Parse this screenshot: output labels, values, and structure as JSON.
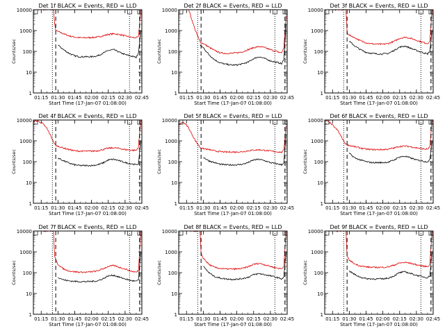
{
  "colors": {
    "events": "#000000",
    "lld": "#dd0000",
    "axis": "#000000",
    "background": "#ffffff"
  },
  "shared": {
    "xlabel": "Start Time (17-Jan-07 01:08:00)",
    "ylabel": "Counts/sec",
    "y_scale": "log",
    "ylim": [
      1,
      10000
    ],
    "y_ticks": [
      1,
      10,
      100,
      1000,
      10000
    ],
    "x_range": [
      "01:08",
      "02:45"
    ],
    "x_ticks": [
      "01:15",
      "01:30",
      "01:45",
      "02:00",
      "02:15",
      "02:30",
      "02:45"
    ],
    "markers": {
      "dotted": [
        "01:25",
        "02:34"
      ],
      "dashed": [
        "01:28",
        "02:43"
      ]
    }
  },
  "chart_data": [
    {
      "type": "line",
      "title": "Det 1f BLACK = Events, RED = LLD",
      "x": [
        "01:17",
        "01:20",
        "01:23",
        "01:26",
        "01:27",
        "01:28",
        "01:30",
        "01:35",
        "01:40",
        "01:45",
        "01:50",
        "01:55",
        "02:00",
        "02:05",
        "02:10",
        "02:15",
        "02:20",
        "02:25",
        "02:30",
        "02:35",
        "02:38",
        "02:40",
        "02:42",
        "02:44"
      ],
      "series": [
        {
          "name": "Events",
          "values": [
            null,
            null,
            null,
            null,
            null,
            null,
            200,
            120,
            80,
            60,
            55,
            55,
            55,
            60,
            80,
            110,
            120,
            90,
            70,
            60,
            55,
            50,
            90,
            1000
          ]
        },
        {
          "name": "LLD",
          "values": [
            10000,
            10000,
            10000,
            10000,
            2000,
            1000,
            900,
            700,
            550,
            480,
            450,
            450,
            460,
            480,
            550,
            650,
            700,
            650,
            550,
            480,
            450,
            450,
            500,
            10000
          ]
        }
      ]
    },
    {
      "type": "line",
      "title": "Det 2f BLACK = Events, RED = LLD",
      "x": [
        "01:17",
        "01:20",
        "01:23",
        "01:26",
        "01:27",
        "01:28",
        "01:30",
        "01:35",
        "01:40",
        "01:45",
        "01:50",
        "01:55",
        "02:00",
        "02:05",
        "02:10",
        "02:15",
        "02:20",
        "02:25",
        "02:30",
        "02:35",
        "02:38",
        "02:40",
        "02:42",
        "02:44"
      ],
      "series": [
        {
          "name": "Events",
          "values": [
            null,
            null,
            null,
            null,
            200,
            180,
            150,
            70,
            40,
            28,
            24,
            22,
            22,
            25,
            30,
            45,
            55,
            45,
            35,
            30,
            28,
            25,
            40,
            2000
          ]
        },
        {
          "name": "LLD",
          "values": [
            10000,
            3000,
            1000,
            400,
            300,
            260,
            240,
            160,
            110,
            85,
            80,
            80,
            85,
            95,
            120,
            150,
            170,
            150,
            120,
            100,
            90,
            85,
            150,
            5000
          ]
        }
      ]
    },
    {
      "type": "line",
      "title": "Det 3f BLACK = Events, RED = LLD",
      "x": [
        "01:17",
        "01:20",
        "01:23",
        "01:26",
        "01:27",
        "01:28",
        "01:30",
        "01:35",
        "01:40",
        "01:45",
        "01:50",
        "01:55",
        "02:00",
        "02:05",
        "02:10",
        "02:15",
        "02:20",
        "02:25",
        "02:30",
        "02:35",
        "02:38",
        "02:40",
        "02:42",
        "02:44"
      ],
      "series": [
        {
          "name": "Events",
          "values": [
            null,
            null,
            null,
            null,
            null,
            null,
            300,
            180,
            120,
            90,
            80,
            75,
            75,
            80,
            110,
            160,
            180,
            140,
            110,
            90,
            80,
            75,
            100,
            1000
          ]
        },
        {
          "name": "LLD",
          "values": [
            10000,
            10000,
            10000,
            10000,
            10000,
            800,
            600,
            450,
            320,
            260,
            230,
            220,
            220,
            240,
            300,
            420,
            480,
            420,
            340,
            280,
            250,
            240,
            300,
            10000
          ]
        }
      ]
    },
    {
      "type": "line",
      "title": "Det 4f BLACK = Events, RED = LLD",
      "x": [
        "01:08",
        "01:12",
        "01:16",
        "01:20",
        "01:23",
        "01:26",
        "01:27",
        "01:28",
        "01:30",
        "01:35",
        "01:40",
        "01:45",
        "01:50",
        "01:55",
        "02:00",
        "02:05",
        "02:10",
        "02:15",
        "02:20",
        "02:25",
        "02:30",
        "02:35",
        "02:38",
        "02:40",
        "02:42",
        "02:44"
      ],
      "series": [
        {
          "name": "Events",
          "values": [
            null,
            null,
            null,
            null,
            null,
            null,
            null,
            null,
            150,
            110,
            85,
            70,
            65,
            65,
            65,
            70,
            85,
            120,
            130,
            110,
            90,
            80,
            75,
            70,
            80,
            1000
          ]
        },
        {
          "name": "LLD",
          "values": [
            9000,
            9000,
            7000,
            4000,
            2000,
            900,
            700,
            600,
            550,
            450,
            380,
            330,
            320,
            320,
            320,
            330,
            380,
            440,
            460,
            430,
            380,
            360,
            350,
            350,
            500,
            10000
          ]
        }
      ]
    },
    {
      "type": "line",
      "title": "Det 5f BLACK = Events, RED = LLD",
      "x": [
        "01:08",
        "01:12",
        "01:16",
        "01:20",
        "01:23",
        "01:26",
        "01:27",
        "01:28",
        "01:30",
        "01:35",
        "01:40",
        "01:45",
        "01:50",
        "01:55",
        "02:00",
        "02:05",
        "02:10",
        "02:15",
        "02:20",
        "02:25",
        "02:30",
        "02:35",
        "02:38",
        "02:40",
        "02:42",
        "02:44"
      ],
      "series": [
        {
          "name": "Events",
          "values": [
            null,
            null,
            null,
            null,
            null,
            null,
            null,
            null,
            160,
            110,
            90,
            75,
            70,
            70,
            70,
            75,
            90,
            120,
            130,
            110,
            90,
            80,
            75,
            70,
            90,
            2000
          ]
        },
        {
          "name": "LLD",
          "values": [
            6000,
            8000,
            5000,
            2000,
            1000,
            600,
            500,
            450,
            420,
            380,
            330,
            300,
            290,
            290,
            290,
            300,
            330,
            360,
            370,
            350,
            320,
            300,
            290,
            280,
            350,
            5000
          ]
        }
      ]
    },
    {
      "type": "line",
      "title": "Det 6f BLACK = Events, RED = LLD",
      "x": [
        "01:08",
        "01:12",
        "01:16",
        "01:20",
        "01:23",
        "01:26",
        "01:27",
        "01:28",
        "01:30",
        "01:35",
        "01:40",
        "01:45",
        "01:50",
        "01:55",
        "02:00",
        "02:05",
        "02:10",
        "02:15",
        "02:20",
        "02:25",
        "02:30",
        "02:35",
        "02:38",
        "02:40",
        "02:42",
        "02:44"
      ],
      "series": [
        {
          "name": "Events",
          "values": [
            null,
            null,
            null,
            null,
            null,
            null,
            null,
            null,
            250,
            150,
            120,
            100,
            90,
            90,
            90,
            95,
            120,
            170,
            180,
            150,
            120,
            110,
            100,
            100,
            120,
            1000
          ]
        },
        {
          "name": "LLD",
          "values": [
            10000,
            8000,
            5000,
            3000,
            1500,
            800,
            700,
            650,
            600,
            520,
            450,
            400,
            380,
            380,
            380,
            400,
            450,
            540,
            560,
            520,
            460,
            420,
            400,
            400,
            500,
            10000
          ]
        }
      ]
    },
    {
      "type": "line",
      "title": "Det 7f BLACK = Events, RED = LLD",
      "x": [
        "01:17",
        "01:20",
        "01:23",
        "01:26",
        "01:27",
        "01:28",
        "01:30",
        "01:35",
        "01:40",
        "01:45",
        "01:50",
        "01:55",
        "02:00",
        "02:05",
        "02:10",
        "02:15",
        "02:20",
        "02:25",
        "02:30",
        "02:35",
        "02:38",
        "02:40",
        "02:42",
        "02:44"
      ],
      "series": [
        {
          "name": "Events",
          "values": [
            null,
            null,
            null,
            null,
            null,
            null,
            60,
            45,
            40,
            38,
            37,
            37,
            38,
            40,
            50,
            70,
            75,
            60,
            50,
            42,
            40,
            38,
            45,
            1000
          ]
        },
        {
          "name": "LLD",
          "values": [
            10000,
            10000,
            10000,
            10000,
            600,
            400,
            250,
            150,
            120,
            110,
            105,
            105,
            110,
            120,
            150,
            200,
            220,
            180,
            150,
            120,
            110,
            105,
            130,
            10000
          ]
        }
      ]
    },
    {
      "type": "line",
      "title": "Det 8f BLACK = Events, RED = LLD",
      "x": [
        "01:17",
        "01:20",
        "01:23",
        "01:26",
        "01:27",
        "01:28",
        "01:30",
        "01:35",
        "01:40",
        "01:45",
        "01:50",
        "01:55",
        "02:00",
        "02:05",
        "02:10",
        "02:15",
        "02:20",
        "02:25",
        "02:30",
        "02:35",
        "02:38",
        "02:40",
        "02:42",
        "02:44"
      ],
      "series": [
        {
          "name": "Events",
          "values": [
            null,
            null,
            null,
            null,
            null,
            null,
            200,
            100,
            65,
            55,
            50,
            48,
            48,
            52,
            60,
            80,
            90,
            80,
            70,
            60,
            55,
            50,
            60,
            1000
          ]
        },
        {
          "name": "LLD",
          "values": [
            10000,
            10000,
            10000,
            10000,
            10000,
            800,
            500,
            250,
            180,
            160,
            150,
            150,
            150,
            160,
            190,
            250,
            280,
            240,
            200,
            170,
            160,
            150,
            200,
            10000
          ]
        }
      ]
    },
    {
      "type": "line",
      "title": "Det 9f BLACK = Events, RED = LLD",
      "x": [
        "01:17",
        "01:20",
        "01:23",
        "01:26",
        "01:27",
        "01:28",
        "01:30",
        "01:35",
        "01:40",
        "01:45",
        "01:50",
        "01:55",
        "02:00",
        "02:05",
        "02:10",
        "02:15",
        "02:20",
        "02:25",
        "02:30",
        "02:35",
        "02:38",
        "02:40",
        "02:42",
        "02:44"
      ],
      "series": [
        {
          "name": "Events",
          "values": [
            null,
            null,
            null,
            null,
            null,
            null,
            120,
            80,
            60,
            52,
            50,
            50,
            50,
            55,
            70,
            100,
            110,
            90,
            75,
            65,
            60,
            58,
            70,
            1000
          ]
        },
        {
          "name": "LLD",
          "values": [
            10000,
            10000,
            10000,
            10000,
            10000,
            600,
            400,
            260,
            210,
            190,
            180,
            180,
            180,
            190,
            230,
            290,
            310,
            280,
            240,
            210,
            200,
            195,
            250,
            10000
          ]
        }
      ]
    }
  ]
}
